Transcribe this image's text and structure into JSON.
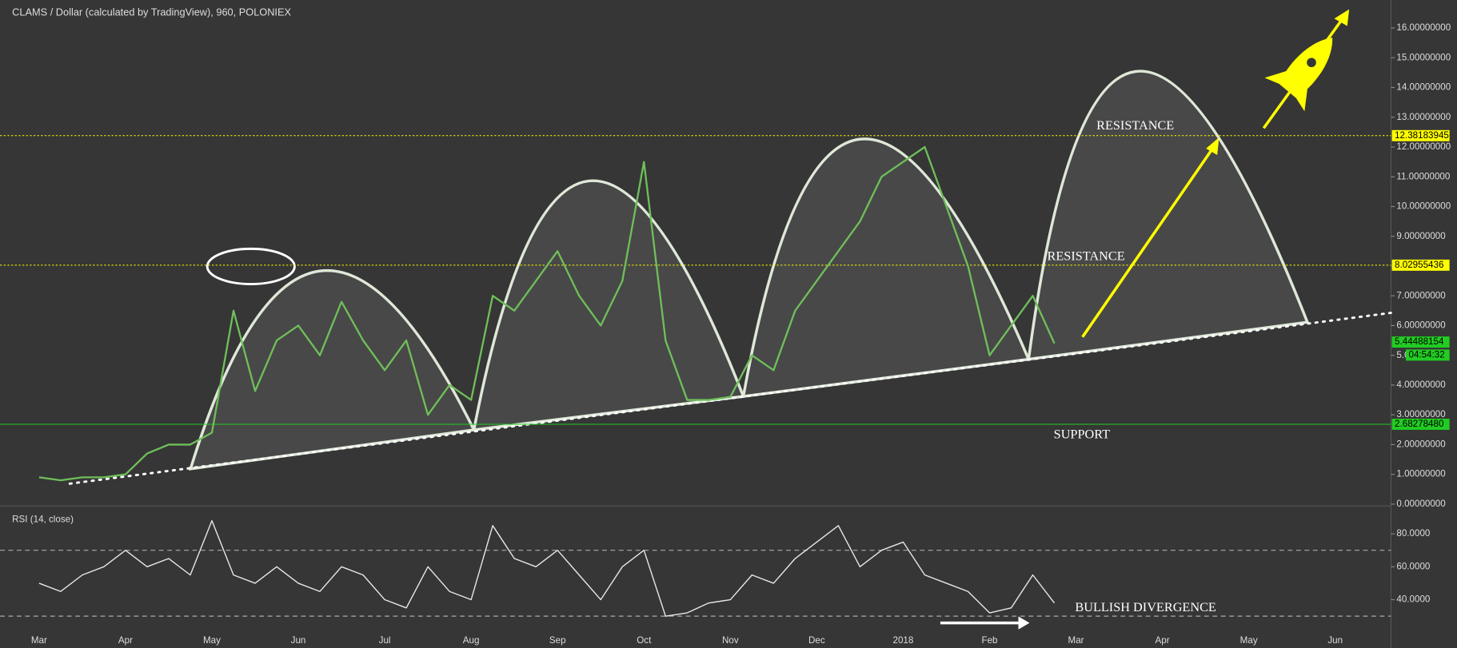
{
  "title": "CLAMS / Dollar (calculated by TradingView), 960, POLONIEX",
  "annotations": [
    "RESISTANCE",
    "RESISTANCE",
    "SUPPORT",
    "BULLISH DIVERGENCE"
  ],
  "chart_data": [
    {
      "type": "line",
      "categories": [
        "Mar",
        null,
        null,
        null,
        "Apr",
        null,
        null,
        null,
        "May",
        null,
        null,
        null,
        "Jun",
        null,
        null,
        null,
        "Jul",
        null,
        null,
        null,
        "Aug",
        null,
        null,
        null,
        "Sep",
        null,
        null,
        null,
        "Oct",
        null,
        null,
        null,
        "Nov",
        null,
        null,
        null,
        "Dec",
        null,
        null,
        null,
        "2018",
        null,
        null,
        null,
        "Feb",
        null,
        null,
        null,
        "Mar",
        null,
        null,
        null,
        "Apr",
        null,
        null,
        null,
        "May",
        null,
        null,
        null,
        "Jun",
        null,
        null,
        null
      ],
      "series": [
        {
          "name": "CLAMS / Dollar",
          "color": "#6fbf5a",
          "values": [
            0.9,
            0.8,
            0.9,
            0.9,
            1.0,
            1.7,
            2.0,
            2.0,
            2.4,
            6.5,
            3.8,
            5.5,
            6.0,
            5.0,
            6.8,
            5.5,
            4.5,
            5.5,
            3.0,
            4.0,
            3.5,
            7.0,
            6.5,
            7.5,
            8.5,
            7.0,
            6.0,
            7.5,
            11.5,
            5.5,
            3.5,
            3.5,
            3.6,
            5.0,
            4.5,
            6.5,
            7.5,
            8.5,
            9.5,
            11.0,
            11.5,
            12.0,
            10.0,
            8.0,
            5.0,
            6.0,
            7.0,
            5.4,
            null,
            null,
            null,
            null,
            null,
            null,
            null,
            null,
            null,
            null,
            null,
            null,
            null,
            null,
            null,
            null
          ]
        }
      ],
      "ylim": [
        0,
        16.94
      ],
      "yticks": [
        {
          "value": 0,
          "label": "0.00000000"
        },
        {
          "value": 1,
          "label": "1.00000000"
        },
        {
          "value": 2,
          "label": "2.00000000"
        },
        {
          "value": 3,
          "label": "3.00000000"
        },
        {
          "value": 4,
          "label": "4.00000000"
        },
        {
          "value": 5,
          "label": "5.00000000"
        },
        {
          "value": 6,
          "label": "6.00000000"
        },
        {
          "value": 7,
          "label": "7.00000000"
        },
        {
          "value": 8,
          "label": "8.00000000"
        },
        {
          "value": 9,
          "label": "9.00000000"
        },
        {
          "value": 10,
          "label": "10.00000000"
        },
        {
          "value": 11,
          "label": "11.00000000"
        },
        {
          "value": 12,
          "label": "12.00000000"
        },
        {
          "value": 13,
          "label": "13.00000000"
        },
        {
          "value": 14,
          "label": "14.00000000"
        },
        {
          "value": 15,
          "label": "15.00000000"
        },
        {
          "value": 16,
          "label": "16.00000000"
        }
      ],
      "levels": [
        {
          "value": 12.38183945,
          "color": "#ffff00"
        },
        {
          "value": 8.02955436,
          "color": "#ffff00"
        },
        {
          "value": 2.6827848,
          "label": "2.68278480",
          "color": "#22cc22"
        },
        {
          "value": 5.44488154,
          "color": "#22cc22"
        }
      ],
      "countdown": "04:54:32"
    },
    {
      "type": "line",
      "title": "RSI (14, close)",
      "series": [
        {
          "name": "RSI",
          "color": "#e8e8e8",
          "values": [
            50,
            45,
            55,
            60,
            70,
            60,
            65,
            55,
            88,
            55,
            50,
            60,
            50,
            45,
            60,
            55,
            40,
            35,
            60,
            45,
            40,
            85,
            65,
            60,
            70,
            55,
            40,
            60,
            70,
            30,
            32,
            38,
            40,
            55,
            50,
            65,
            75,
            85,
            60,
            70,
            75,
            55,
            50,
            45,
            32,
            35,
            55,
            38
          ]
        }
      ],
      "ylim": [
        20.8,
        95.8
      ],
      "yticks": [
        {
          "value": 40,
          "label": "40.0000"
        },
        {
          "value": 60,
          "label": "60.0000"
        },
        {
          "value": 80,
          "label": "80.0000"
        }
      ],
      "bands": [
        30,
        70
      ]
    }
  ]
}
